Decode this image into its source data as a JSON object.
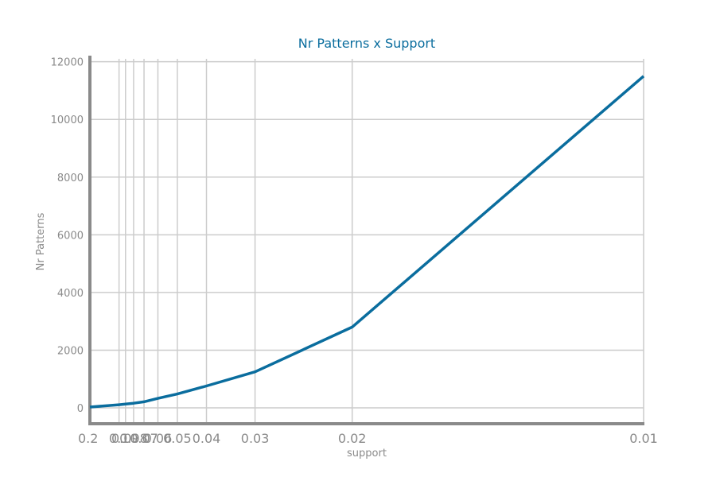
{
  "chart_data": {
    "type": "line",
    "title": "Nr Patterns x Support",
    "xlabel": "support",
    "ylabel": "Nr Patterns",
    "x_axis_reversed": true,
    "x": [
      0.2,
      0.1,
      0.09,
      0.08,
      0.07,
      0.06,
      0.05,
      0.04,
      0.03,
      0.02,
      0.01
    ],
    "x_tick_labels": [
      "0.2",
      "0.1",
      "0.09",
      "0.08",
      "0.07",
      "0.06",
      "0.05",
      "0.04",
      "0.03",
      "0.02",
      "0.01"
    ],
    "series": [
      {
        "values": [
          30,
          110,
          130,
          160,
          210,
          330,
          480,
          760,
          1250,
          2800,
          11500
        ]
      }
    ],
    "y_ticks": [
      "0",
      "2000",
      "4000",
      "6000",
      "8000",
      "10000",
      "12000"
    ],
    "ylim": [
      -550,
      12100
    ],
    "grid": true,
    "colors": {
      "title": "#0a6d9e",
      "line": "#0a6d9e",
      "grid": "#cccccc",
      "axis": "#8a8a8a",
      "label": "#8a8a8a"
    }
  }
}
